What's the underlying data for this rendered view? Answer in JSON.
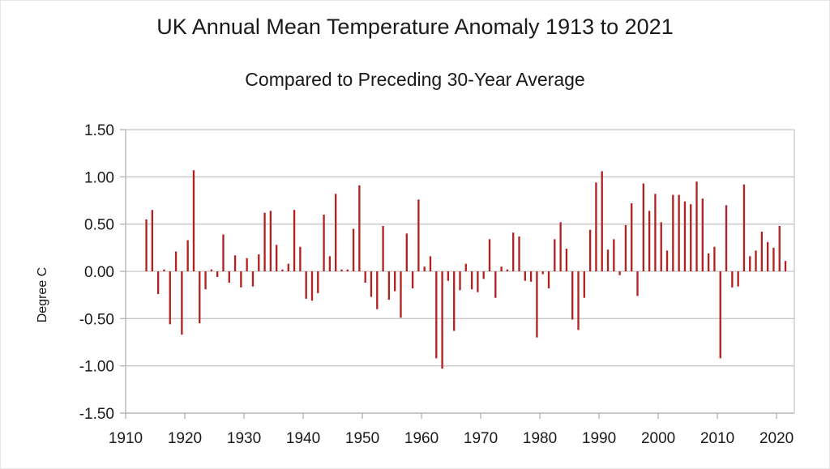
{
  "chart_data": {
    "type": "bar",
    "title": "UK Annual Mean Temperature Anomaly 1913 to 2021",
    "subtitle": "Compared to Preceding 30-Year Average",
    "xlabel": "",
    "ylabel": "Degree C",
    "ylim": [
      -1.5,
      1.5
    ],
    "xlim": [
      1910,
      2023
    ],
    "y_ticks": [
      "-1.50",
      "-1.00",
      "-0.50",
      "0.00",
      "0.50",
      "1.00",
      "1.50"
    ],
    "y_tick_values": [
      -1.5,
      -1.0,
      -0.5,
      0.0,
      0.5,
      1.0,
      1.5
    ],
    "x_ticks": [
      "1910",
      "1920",
      "1930",
      "1940",
      "1950",
      "1960",
      "1970",
      "1980",
      "1990",
      "2000",
      "2010",
      "2020"
    ],
    "x_tick_values": [
      1910,
      1920,
      1930,
      1940,
      1950,
      1960,
      1970,
      1980,
      1990,
      2000,
      2010,
      2020
    ],
    "grid": true,
    "legend": "none",
    "bar_color": "#b22222",
    "years": [
      1913,
      1914,
      1915,
      1916,
      1917,
      1918,
      1919,
      1920,
      1921,
      1922,
      1923,
      1924,
      1925,
      1926,
      1927,
      1928,
      1929,
      1930,
      1931,
      1932,
      1933,
      1934,
      1935,
      1936,
      1937,
      1938,
      1939,
      1940,
      1941,
      1942,
      1943,
      1944,
      1945,
      1946,
      1947,
      1948,
      1949,
      1950,
      1951,
      1952,
      1953,
      1954,
      1955,
      1956,
      1957,
      1958,
      1959,
      1960,
      1961,
      1962,
      1963,
      1964,
      1965,
      1966,
      1967,
      1968,
      1969,
      1970,
      1971,
      1972,
      1973,
      1974,
      1975,
      1976,
      1977,
      1978,
      1979,
      1980,
      1981,
      1982,
      1983,
      1984,
      1985,
      1986,
      1987,
      1988,
      1989,
      1990,
      1991,
      1992,
      1993,
      1994,
      1995,
      1996,
      1997,
      1998,
      1999,
      2000,
      2001,
      2002,
      2003,
      2004,
      2005,
      2006,
      2007,
      2008,
      2009,
      2010,
      2011,
      2012,
      2013,
      2014,
      2015,
      2016,
      2017,
      2018,
      2019,
      2020,
      2021
    ],
    "values": [
      0.55,
      0.65,
      -0.24,
      0.02,
      -0.56,
      0.21,
      -0.67,
      0.33,
      1.07,
      -0.55,
      -0.19,
      0.02,
      -0.06,
      0.39,
      -0.12,
      0.17,
      -0.17,
      0.14,
      -0.16,
      0.18,
      0.62,
      0.64,
      0.28,
      0.02,
      0.08,
      0.65,
      0.26,
      -0.29,
      -0.31,
      -0.23,
      0.6,
      0.16,
      0.82,
      0.02,
      0.02,
      0.45,
      0.91,
      -0.12,
      -0.27,
      -0.4,
      0.48,
      -0.3,
      -0.21,
      -0.49,
      0.4,
      -0.18,
      0.76,
      0.05,
      0.16,
      -0.92,
      -1.03,
      -0.1,
      -0.63,
      -0.2,
      0.08,
      -0.19,
      -0.22,
      -0.08,
      0.34,
      -0.28,
      0.05,
      0.02,
      0.41,
      0.37,
      -0.1,
      -0.11,
      -0.7,
      -0.03,
      -0.18,
      0.34,
      0.52,
      0.24,
      -0.51,
      -0.62,
      -0.28,
      0.44,
      0.94,
      1.06,
      0.23,
      0.34,
      -0.04,
      0.49,
      0.72,
      -0.26,
      0.93,
      0.64,
      0.82,
      0.52,
      0.22,
      0.81,
      0.81,
      0.74,
      0.71,
      0.95,
      0.77,
      0.19,
      0.26,
      -0.92,
      0.7,
      -0.17,
      -0.16,
      0.92,
      0.16,
      0.22,
      0.42,
      0.31,
      0.25,
      0.48,
      0.11
    ]
  }
}
